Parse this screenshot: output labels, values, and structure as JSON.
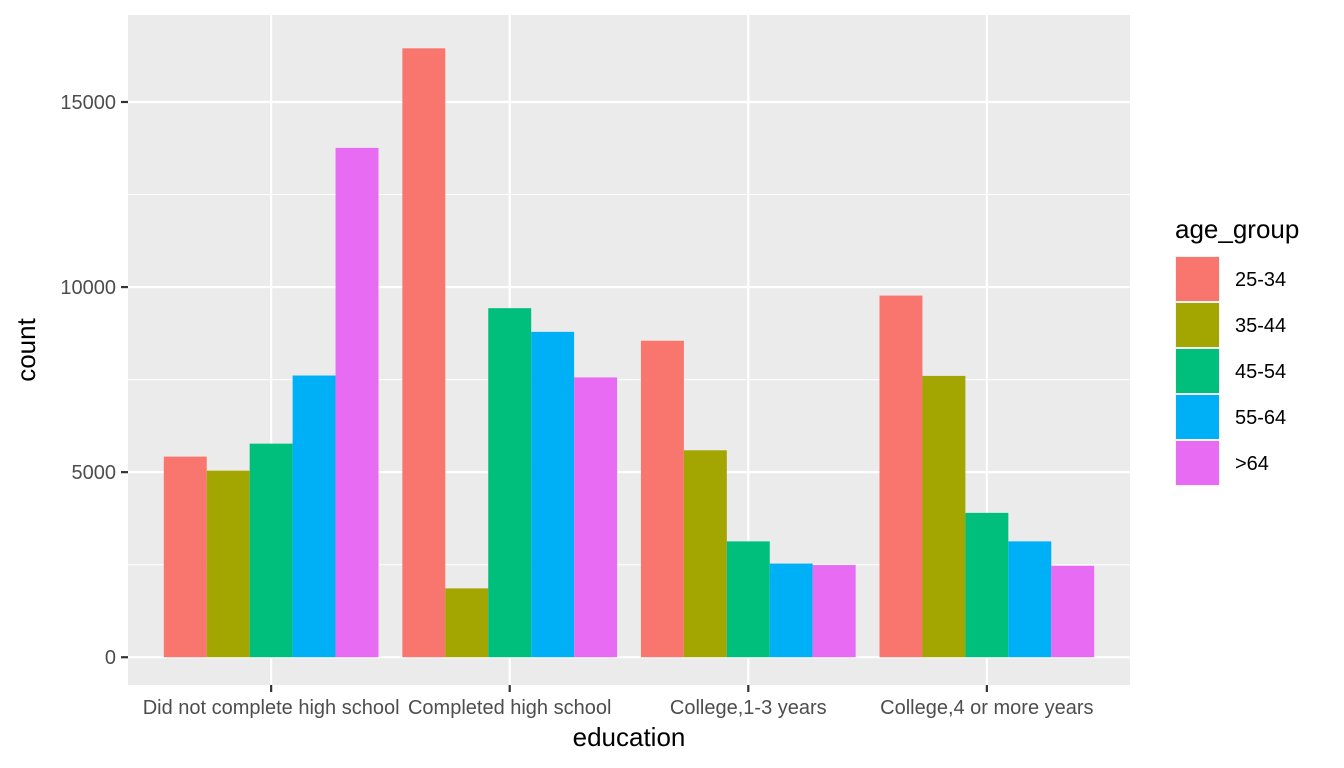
{
  "chart_data": {
    "type": "bar",
    "xlabel": "education",
    "ylabel": "count",
    "categories": [
      "Did not complete high school",
      "Completed high school",
      "College,1-3 years",
      "College,4 or more years"
    ],
    "ylim": [
      -750,
      17350
    ],
    "y_ticks": [
      0,
      5000,
      10000,
      15000
    ],
    "y_tick_labels": [
      "0",
      "5000",
      "10000",
      "15000"
    ],
    "grid": true,
    "legend": {
      "title": "age_group",
      "position": "right"
    },
    "series": [
      {
        "name": "25-34",
        "color": "#F8766D",
        "values": [
          5420,
          16450,
          8550,
          9770
        ]
      },
      {
        "name": "35-44",
        "color": "#A3A500",
        "values": [
          5040,
          1860,
          5590,
          7600
        ]
      },
      {
        "name": "45-54",
        "color": "#00BF7D",
        "values": [
          5770,
          9430,
          3130,
          3900
        ]
      },
      {
        "name": "55-64",
        "color": "#00B0F6",
        "values": [
          7610,
          8790,
          2530,
          3130
        ]
      },
      {
        "name": ">64",
        "color": "#E76BF3",
        "values": [
          13760,
          7560,
          2490,
          2470
        ]
      }
    ]
  }
}
